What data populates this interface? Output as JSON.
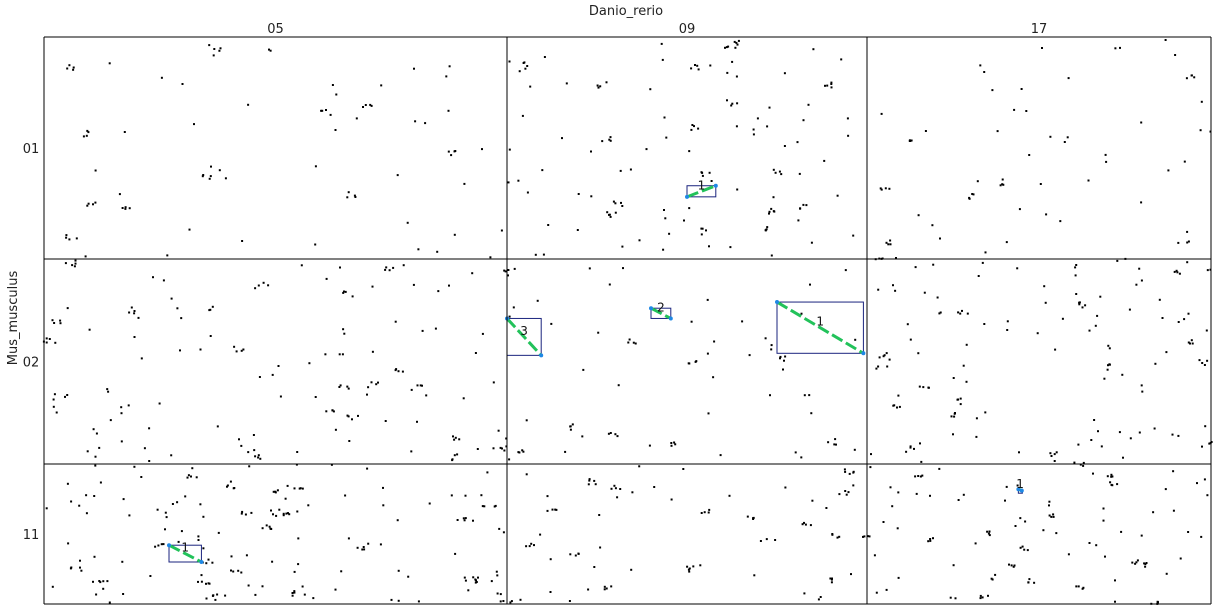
{
  "chart_data": {
    "type": "scatter",
    "title": "Danio_rerio",
    "xlabel": "Danio_rerio",
    "ylabel": "Mus_musculus",
    "columns": [
      "05",
      "09",
      "17"
    ],
    "rows": [
      "01",
      "02",
      "11"
    ],
    "colors": {
      "dot": "#000000",
      "segment": "#22c25a",
      "box": "#1a237e",
      "endpoint": "#1e88e5",
      "grid": "#000000"
    },
    "blocks": [
      {
        "label": "1",
        "col": "09",
        "row": "01",
        "x": [
          0.5,
          0.58
        ],
        "y": [
          0.72,
          0.67
        ]
      },
      {
        "label": "3",
        "col": "09",
        "row": "02",
        "x": [
          0.0,
          0.095
        ],
        "y": [
          0.29,
          0.47
        ]
      },
      {
        "label": "2",
        "col": "09",
        "row": "02",
        "x": [
          0.4,
          0.455
        ],
        "y": [
          0.24,
          0.29
        ]
      },
      {
        "label": "1",
        "col": "09",
        "row": "02",
        "x": [
          0.75,
          0.99
        ],
        "y": [
          0.21,
          0.46
        ]
      },
      {
        "label": "1",
        "col": "05",
        "row": "11",
        "x": [
          0.27,
          0.34
        ],
        "y": [
          0.58,
          0.7
        ]
      },
      {
        "label": "1",
        "col": "17",
        "row": "11",
        "x": [
          0.44,
          0.45
        ],
        "y": [
          0.18,
          0.19
        ]
      }
    ]
  }
}
